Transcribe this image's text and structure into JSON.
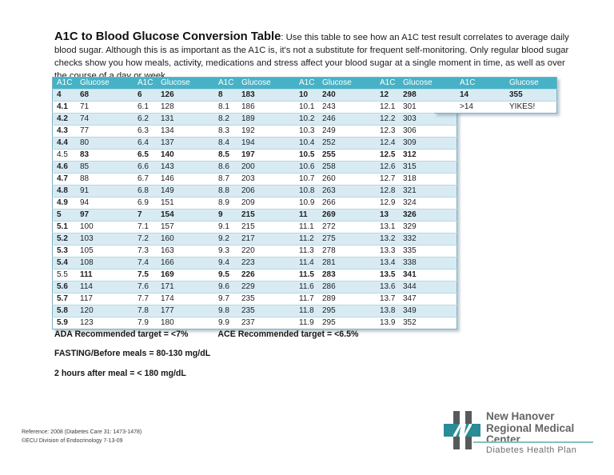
{
  "intro": {
    "title": "A1C to Blood Glucose Conversion Table",
    "lead": ": Use this table to see how an A1C test result correlates to average daily blood sugar. ",
    "body": "Although this is as important as the A1C is, it's not a substitute for frequent self-monitoring. Only regular blood sugar checks show you how meals, activity, medications and stress affect your blood sugar at a single moment in time, as well as over the course of a day or week."
  },
  "table": {
    "header_a1c": "A1C",
    "header_glucose": "Glucose",
    "main_pairs": 5,
    "rows": [
      {
        "e": "all",
        "c": [
          "4",
          "68",
          "6",
          "126",
          "8",
          "183",
          "10",
          "240",
          "12",
          "298",
          "14",
          "355"
        ]
      },
      {
        "e": "first",
        "c": [
          "4.1",
          "71",
          "6.1",
          "128",
          "8.1",
          "186",
          "10.1",
          "243",
          "12.1",
          "301",
          ">14",
          "YIKES!"
        ]
      },
      {
        "e": "first",
        "c": [
          "4.2",
          "74",
          "6.2",
          "131",
          "8.2",
          "189",
          "10.2",
          "246",
          "12.2",
          "303",
          null,
          null
        ]
      },
      {
        "e": "first",
        "c": [
          "4.3",
          "77",
          "6.3",
          "134",
          "8.3",
          "192",
          "10.3",
          "249",
          "12.3",
          "306",
          null,
          null
        ]
      },
      {
        "e": "first",
        "c": [
          "4.4",
          "80",
          "6.4",
          "137",
          "8.4",
          "194",
          "10.4",
          "252",
          "12.4",
          "309",
          null,
          null
        ]
      },
      {
        "e": "rest",
        "c": [
          "4.5",
          "83",
          "6.5",
          "140",
          "8.5",
          "197",
          "10.5",
          "255",
          "12.5",
          "312",
          null,
          null
        ]
      },
      {
        "e": "first",
        "c": [
          "4.6",
          "85",
          "6.6",
          "143",
          "8.6",
          "200",
          "10.6",
          "258",
          "12.6",
          "315",
          null,
          null
        ]
      },
      {
        "e": "first",
        "c": [
          "4.7",
          "88",
          "6.7",
          "146",
          "8.7",
          "203",
          "10.7",
          "260",
          "12.7",
          "318",
          null,
          null
        ]
      },
      {
        "e": "first",
        "c": [
          "4.8",
          "91",
          "6.8",
          "149",
          "8.8",
          "206",
          "10.8",
          "263",
          "12.8",
          "321",
          null,
          null
        ]
      },
      {
        "e": "first",
        "c": [
          "4.9",
          "94",
          "6.9",
          "151",
          "8.9",
          "209",
          "10.9",
          "266",
          "12.9",
          "324",
          null,
          null
        ]
      },
      {
        "e": "all",
        "c": [
          "5",
          "97",
          "7",
          "154",
          "9",
          "215",
          "11",
          "269",
          "13",
          "326",
          null,
          null
        ]
      },
      {
        "e": "first",
        "c": [
          "5.1",
          "100",
          "7.1",
          "157",
          "9.1",
          "215",
          "11.1",
          "272",
          "13.1",
          "329",
          null,
          null
        ]
      },
      {
        "e": "first",
        "c": [
          "5.2",
          "103",
          "7.2",
          "160",
          "9.2",
          "217",
          "11.2",
          "275",
          "13.2",
          "332",
          null,
          null
        ]
      },
      {
        "e": "first",
        "c": [
          "5.3",
          "105",
          "7.3",
          "163",
          "9.3",
          "220",
          "11.3",
          "278",
          "13.3",
          "335",
          null,
          null
        ]
      },
      {
        "e": "first",
        "c": [
          "5.4",
          "108",
          "7.4",
          "166",
          "9.4",
          "223",
          "11.4",
          "281",
          "13.4",
          "338",
          null,
          null
        ]
      },
      {
        "e": "rest",
        "c": [
          "5.5",
          "111",
          "7.5",
          "169",
          "9.5",
          "226",
          "11.5",
          "283",
          "13.5",
          "341",
          null,
          null
        ]
      },
      {
        "e": "first",
        "c": [
          "5.6",
          "114",
          "7.6",
          "171",
          "9.6",
          "229",
          "11.6",
          "286",
          "13.6",
          "344",
          null,
          null
        ]
      },
      {
        "e": "first",
        "c": [
          "5.7",
          "117",
          "7.7",
          "174",
          "9.7",
          "235",
          "11.7",
          "289",
          "13.7",
          "347",
          null,
          null
        ]
      },
      {
        "e": "first",
        "c": [
          "5.8",
          "120",
          "7.8",
          "177",
          "9.8",
          "235",
          "11.8",
          "295",
          "13.8",
          "349",
          null,
          null
        ]
      },
      {
        "e": "first",
        "c": [
          "5.9",
          "123",
          "7.9",
          "180",
          "9.9",
          "237",
          "11.9",
          "295",
          "13.9",
          "352",
          null,
          null
        ]
      }
    ]
  },
  "notes": {
    "ada": "ADA Recommended target = <7%",
    "ace": "ACE Recommended target = <6.5%",
    "fasting": "FASTING/Before meals = 80-130 mg/dL",
    "after_meal": "2 hours after meal = < 180 mg/dL"
  },
  "footer": {
    "reference": "Reference: 2008 (Diabetes Care 31: 1473-1478)",
    "copyright": "©ECU Division of Endocrinology 7-13-09"
  },
  "logo": {
    "org_line1": "New Hanover",
    "org_line2": "Regional Medical Center",
    "program": "Diabetes Health Plan"
  },
  "colors": {
    "header_teal": "#47b2c6",
    "row_stripe": "#d8ebf3",
    "table_border": "#7fafc2",
    "logo_teal": "#2a8c96",
    "logo_gray": "#58595b",
    "logo_text_gray": "#636466"
  }
}
